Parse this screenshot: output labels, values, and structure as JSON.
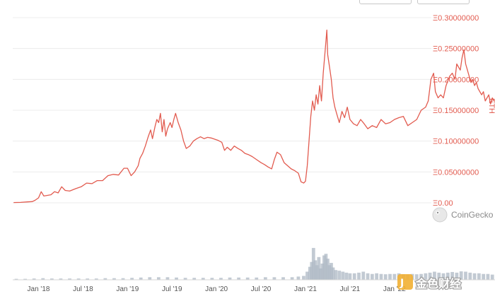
{
  "chart_data": {
    "type": "line",
    "unit_label": "ETH",
    "color": "#e25b4f",
    "volume_color": "#aeb8c4",
    "y_ticks": [
      {
        "v": 0.0,
        "label": "Ξ0.00"
      },
      {
        "v": 0.05,
        "label": "Ξ0.05000000"
      },
      {
        "v": 0.1,
        "label": "Ξ0.10000000"
      },
      {
        "v": 0.15,
        "label": "Ξ0.15000000"
      },
      {
        "v": 0.2,
        "label": "Ξ0.20000000"
      },
      {
        "v": 0.25,
        "label": "Ξ0.25000000"
      },
      {
        "v": 0.3,
        "label": "Ξ0.30000000"
      }
    ],
    "x_ticks": [
      {
        "t": 2018.0,
        "label": "Jan '18"
      },
      {
        "t": 2018.5,
        "label": "Jul '18"
      },
      {
        "t": 2019.0,
        "label": "Jan '19"
      },
      {
        "t": 2019.5,
        "label": "Jul '19"
      },
      {
        "t": 2020.0,
        "label": "Jan '20"
      },
      {
        "t": 2020.5,
        "label": "Jul '20"
      },
      {
        "t": 2021.0,
        "label": "Jan '21"
      },
      {
        "t": 2021.5,
        "label": "Jul '21"
      },
      {
        "t": 2022.0,
        "label": "Jan '22"
      }
    ],
    "x_range": [
      2017.71,
      2023.13
    ],
    "y_range": [
      0,
      0.3
    ],
    "series": [
      {
        "points": [
          [
            2017.72,
            0.0005
          ],
          [
            2017.8,
            0.0007
          ],
          [
            2017.88,
            0.0015
          ],
          [
            2017.93,
            0.002
          ],
          [
            2017.96,
            0.004
          ],
          [
            2018.0,
            0.008
          ],
          [
            2018.03,
            0.018
          ],
          [
            2018.06,
            0.011
          ],
          [
            2018.1,
            0.012
          ],
          [
            2018.14,
            0.013
          ],
          [
            2018.18,
            0.018
          ],
          [
            2018.22,
            0.016
          ],
          [
            2018.26,
            0.026
          ],
          [
            2018.3,
            0.02
          ],
          [
            2018.35,
            0.019
          ],
          [
            2018.42,
            0.023
          ],
          [
            2018.48,
            0.026
          ],
          [
            2018.54,
            0.032
          ],
          [
            2018.6,
            0.031
          ],
          [
            2018.66,
            0.036
          ],
          [
            2018.72,
            0.036
          ],
          [
            2018.78,
            0.044
          ],
          [
            2018.84,
            0.046
          ],
          [
            2018.9,
            0.045
          ],
          [
            2018.96,
            0.056
          ],
          [
            2019.0,
            0.056
          ],
          [
            2019.04,
            0.044
          ],
          [
            2019.08,
            0.05
          ],
          [
            2019.12,
            0.06
          ],
          [
            2019.14,
            0.072
          ],
          [
            2019.17,
            0.08
          ],
          [
            2019.2,
            0.092
          ],
          [
            2019.23,
            0.106
          ],
          [
            2019.26,
            0.118
          ],
          [
            2019.28,
            0.104
          ],
          [
            2019.31,
            0.124
          ],
          [
            2019.33,
            0.135
          ],
          [
            2019.35,
            0.13
          ],
          [
            2019.37,
            0.145
          ],
          [
            2019.39,
            0.115
          ],
          [
            2019.41,
            0.135
          ],
          [
            2019.43,
            0.108
          ],
          [
            2019.45,
            0.12
          ],
          [
            2019.48,
            0.13
          ],
          [
            2019.5,
            0.122
          ],
          [
            2019.52,
            0.135
          ],
          [
            2019.54,
            0.145
          ],
          [
            2019.57,
            0.13
          ],
          [
            2019.6,
            0.118
          ],
          [
            2019.63,
            0.1
          ],
          [
            2019.66,
            0.088
          ],
          [
            2019.7,
            0.092
          ],
          [
            2019.74,
            0.1
          ],
          [
            2019.78,
            0.104
          ],
          [
            2019.82,
            0.107
          ],
          [
            2019.86,
            0.104
          ],
          [
            2019.9,
            0.106
          ],
          [
            2019.94,
            0.105
          ],
          [
            2019.98,
            0.103
          ],
          [
            2020.02,
            0.101
          ],
          [
            2020.06,
            0.098
          ],
          [
            2020.09,
            0.085
          ],
          [
            2020.12,
            0.09
          ],
          [
            2020.16,
            0.085
          ],
          [
            2020.2,
            0.092
          ],
          [
            2020.24,
            0.088
          ],
          [
            2020.28,
            0.085
          ],
          [
            2020.32,
            0.08
          ],
          [
            2020.36,
            0.078
          ],
          [
            2020.4,
            0.075
          ],
          [
            2020.45,
            0.07
          ],
          [
            2020.5,
            0.065
          ],
          [
            2020.54,
            0.062
          ],
          [
            2020.58,
            0.058
          ],
          [
            2020.62,
            0.055
          ],
          [
            2020.65,
            0.07
          ],
          [
            2020.68,
            0.082
          ],
          [
            2020.72,
            0.078
          ],
          [
            2020.76,
            0.065
          ],
          [
            2020.8,
            0.06
          ],
          [
            2020.84,
            0.055
          ],
          [
            2020.88,
            0.052
          ],
          [
            2020.92,
            0.048
          ],
          [
            2020.95,
            0.034
          ],
          [
            2020.98,
            0.032
          ],
          [
            2021.0,
            0.035
          ],
          [
            2021.02,
            0.06
          ],
          [
            2021.04,
            0.1
          ],
          [
            2021.06,
            0.14
          ],
          [
            2021.08,
            0.165
          ],
          [
            2021.1,
            0.15
          ],
          [
            2021.12,
            0.175
          ],
          [
            2021.14,
            0.16
          ],
          [
            2021.16,
            0.19
          ],
          [
            2021.18,
            0.165
          ],
          [
            2021.2,
            0.21
          ],
          [
            2021.22,
            0.245
          ],
          [
            2021.24,
            0.28
          ],
          [
            2021.25,
            0.24
          ],
          [
            2021.27,
            0.22
          ],
          [
            2021.29,
            0.2
          ],
          [
            2021.31,
            0.17
          ],
          [
            2021.33,
            0.155
          ],
          [
            2021.35,
            0.145
          ],
          [
            2021.38,
            0.13
          ],
          [
            2021.41,
            0.148
          ],
          [
            2021.44,
            0.138
          ],
          [
            2021.47,
            0.155
          ],
          [
            2021.5,
            0.135
          ],
          [
            2021.54,
            0.128
          ],
          [
            2021.58,
            0.125
          ],
          [
            2021.62,
            0.135
          ],
          [
            2021.66,
            0.128
          ],
          [
            2021.7,
            0.12
          ],
          [
            2021.75,
            0.125
          ],
          [
            2021.8,
            0.122
          ],
          [
            2021.85,
            0.135
          ],
          [
            2021.9,
            0.128
          ],
          [
            2021.95,
            0.13
          ],
          [
            2022.0,
            0.135
          ],
          [
            2022.05,
            0.138
          ],
          [
            2022.1,
            0.14
          ],
          [
            2022.15,
            0.125
          ],
          [
            2022.2,
            0.13
          ],
          [
            2022.25,
            0.135
          ],
          [
            2022.3,
            0.15
          ],
          [
            2022.35,
            0.155
          ],
          [
            2022.38,
            0.165
          ],
          [
            2022.41,
            0.2
          ],
          [
            2022.44,
            0.21
          ],
          [
            2022.46,
            0.18
          ],
          [
            2022.49,
            0.17
          ],
          [
            2022.52,
            0.175
          ],
          [
            2022.55,
            0.17
          ],
          [
            2022.58,
            0.19
          ],
          [
            2022.62,
            0.205
          ],
          [
            2022.65,
            0.21
          ],
          [
            2022.68,
            0.2
          ],
          [
            2022.7,
            0.225
          ],
          [
            2022.72,
            0.22
          ],
          [
            2022.74,
            0.215
          ],
          [
            2022.76,
            0.235
          ],
          [
            2022.78,
            0.248
          ],
          [
            2022.8,
            0.225
          ],
          [
            2022.82,
            0.215
          ],
          [
            2022.84,
            0.205
          ],
          [
            2022.86,
            0.195
          ],
          [
            2022.88,
            0.2
          ],
          [
            2022.9,
            0.19
          ],
          [
            2022.92,
            0.195
          ],
          [
            2022.94,
            0.185
          ],
          [
            2022.96,
            0.18
          ],
          [
            2022.98,
            0.175
          ],
          [
            2023.0,
            0.18
          ],
          [
            2023.02,
            0.165
          ],
          [
            2023.04,
            0.17
          ],
          [
            2023.06,
            0.175
          ],
          [
            2023.08,
            0.16
          ],
          [
            2023.1,
            0.17
          ],
          [
            2023.12,
            0.165
          ]
        ]
      }
    ],
    "volume": [
      [
        2017.75,
        0.03
      ],
      [
        2017.85,
        0.03
      ],
      [
        2017.95,
        0.04
      ],
      [
        2018.05,
        0.05
      ],
      [
        2018.15,
        0.04
      ],
      [
        2018.25,
        0.04
      ],
      [
        2018.35,
        0.04
      ],
      [
        2018.45,
        0.04
      ],
      [
        2018.55,
        0.04
      ],
      [
        2018.65,
        0.04
      ],
      [
        2018.75,
        0.05
      ],
      [
        2018.85,
        0.05
      ],
      [
        2018.95,
        0.05
      ],
      [
        2019.05,
        0.06
      ],
      [
        2019.15,
        0.07
      ],
      [
        2019.25,
        0.08
      ],
      [
        2019.35,
        0.08
      ],
      [
        2019.45,
        0.08
      ],
      [
        2019.55,
        0.07
      ],
      [
        2019.65,
        0.06
      ],
      [
        2019.75,
        0.06
      ],
      [
        2019.85,
        0.06
      ],
      [
        2019.95,
        0.06
      ],
      [
        2020.05,
        0.06
      ],
      [
        2020.15,
        0.07
      ],
      [
        2020.25,
        0.07
      ],
      [
        2020.35,
        0.07
      ],
      [
        2020.45,
        0.07
      ],
      [
        2020.55,
        0.08
      ],
      [
        2020.65,
        0.08
      ],
      [
        2020.75,
        0.08
      ],
      [
        2020.85,
        0.08
      ],
      [
        2020.92,
        0.1
      ],
      [
        2020.98,
        0.12
      ],
      [
        2021.02,
        0.25
      ],
      [
        2021.05,
        0.4
      ],
      [
        2021.07,
        0.55
      ],
      [
        2021.09,
        0.98
      ],
      [
        2021.11,
        0.6
      ],
      [
        2021.13,
        0.45
      ],
      [
        2021.15,
        0.7
      ],
      [
        2021.17,
        0.35
      ],
      [
        2021.19,
        0.5
      ],
      [
        2021.21,
        0.75
      ],
      [
        2021.23,
        0.8
      ],
      [
        2021.25,
        0.65
      ],
      [
        2021.27,
        0.45
      ],
      [
        2021.29,
        0.52
      ],
      [
        2021.31,
        0.38
      ],
      [
        2021.34,
        0.3
      ],
      [
        2021.38,
        0.28
      ],
      [
        2021.42,
        0.25
      ],
      [
        2021.46,
        0.22
      ],
      [
        2021.5,
        0.2
      ],
      [
        2021.55,
        0.2
      ],
      [
        2021.6,
        0.22
      ],
      [
        2021.65,
        0.25
      ],
      [
        2021.7,
        0.2
      ],
      [
        2021.75,
        0.18
      ],
      [
        2021.8,
        0.2
      ],
      [
        2021.85,
        0.18
      ],
      [
        2021.9,
        0.17
      ],
      [
        2021.95,
        0.18
      ],
      [
        2022.0,
        0.18
      ],
      [
        2022.05,
        0.2
      ],
      [
        2022.1,
        0.17
      ],
      [
        2022.15,
        0.16
      ],
      [
        2022.2,
        0.18
      ],
      [
        2022.25,
        0.17
      ],
      [
        2022.3,
        0.18
      ],
      [
        2022.35,
        0.2
      ],
      [
        2022.4,
        0.22
      ],
      [
        2022.45,
        0.25
      ],
      [
        2022.5,
        0.22
      ],
      [
        2022.55,
        0.2
      ],
      [
        2022.6,
        0.22
      ],
      [
        2022.65,
        0.24
      ],
      [
        2022.7,
        0.22
      ],
      [
        2022.75,
        0.26
      ],
      [
        2022.8,
        0.25
      ],
      [
        2022.85,
        0.22
      ],
      [
        2022.9,
        0.2
      ],
      [
        2022.95,
        0.2
      ],
      [
        2023.0,
        0.18
      ],
      [
        2023.05,
        0.18
      ],
      [
        2023.1,
        0.16
      ]
    ]
  },
  "branding": {
    "label": "CoinGecko"
  },
  "watermark": {
    "label": "金色财经"
  }
}
